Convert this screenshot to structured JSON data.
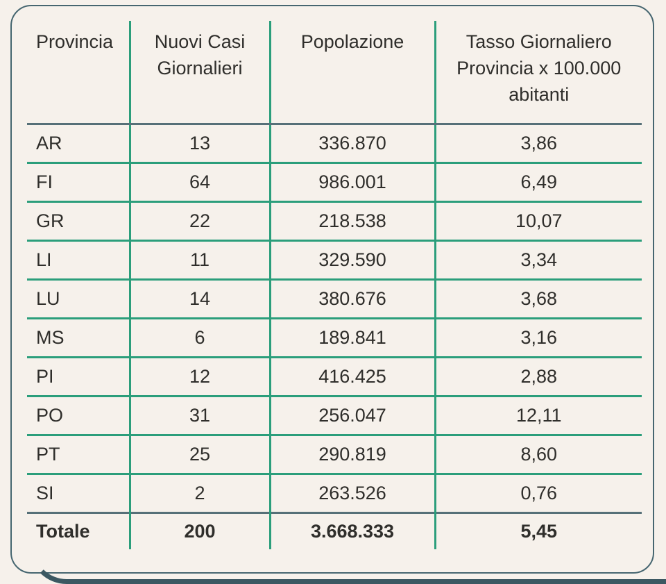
{
  "chart_data": {
    "type": "table",
    "columns": [
      {
        "lines": [
          "Provincia",
          "",
          ""
        ]
      },
      {
        "lines": [
          "Nuovi Casi",
          "Giornalieri",
          ""
        ]
      },
      {
        "lines": [
          "Popolazione",
          "",
          ""
        ]
      },
      {
        "lines": [
          "Tasso Giornaliero",
          "Provincia x 100.000",
          "abitanti"
        ]
      }
    ],
    "rows": [
      [
        "AR",
        "13",
        "336.870",
        "3,86"
      ],
      [
        "FI",
        "64",
        "986.001",
        "6,49"
      ],
      [
        "GR",
        "22",
        "218.538",
        "10,07"
      ],
      [
        "LI",
        "11",
        "329.590",
        "3,34"
      ],
      [
        "LU",
        "14",
        "380.676",
        "3,68"
      ],
      [
        "MS",
        "6",
        "189.841",
        "3,16"
      ],
      [
        "PI",
        "12",
        "416.425",
        "2,88"
      ],
      [
        "PO",
        "31",
        "256.047",
        "12,11"
      ],
      [
        "PT",
        "25",
        "290.819",
        "8,60"
      ],
      [
        "SI",
        "2",
        "263.526",
        "0,76"
      ]
    ],
    "total_row": [
      "Totale",
      "200",
      "3.668.333",
      "5,45"
    ]
  },
  "colors": {
    "background": "#F6F1EB",
    "text": "#2F2E2B",
    "grid_green": "#2B9E7B",
    "divider_slate": "#567078",
    "card_border": "#466670",
    "bottom_band": "#3C5862"
  }
}
